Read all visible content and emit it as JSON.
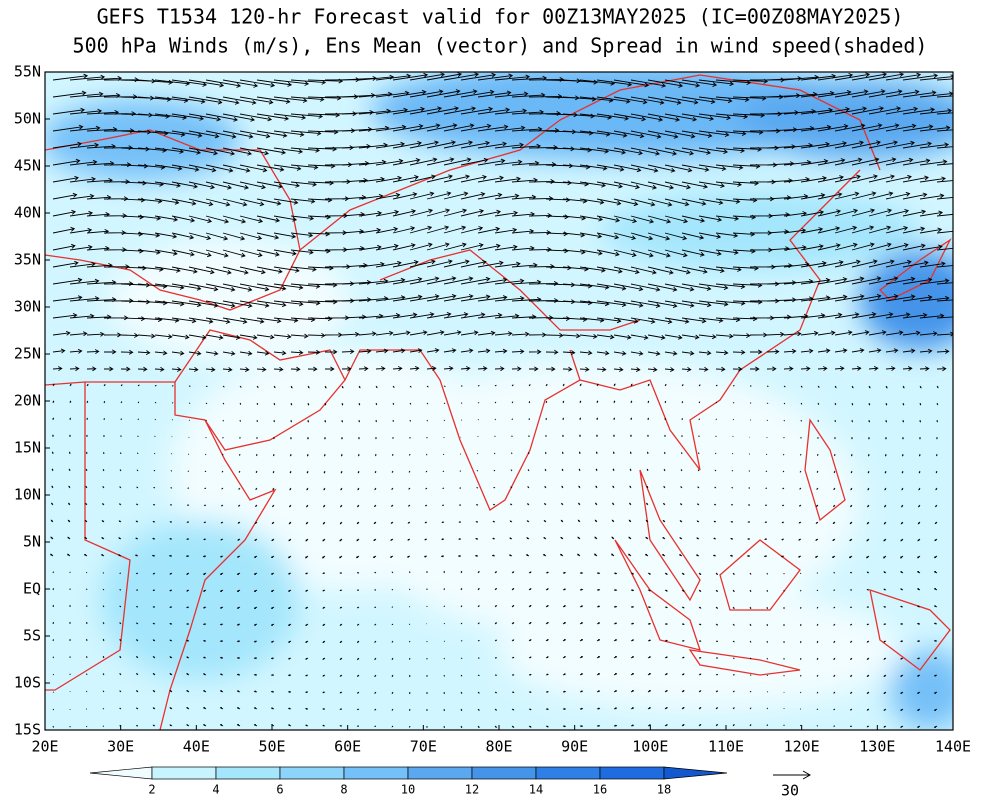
{
  "title": [
    "GEFS T1534 120-hr Forecast valid for 00Z13MAY2025 (IC=00Z08MAY2025)",
    "500 hPa Winds (m/s), Ens Mean (vector) and Spread in wind speed(shaded)"
  ],
  "map": {
    "lat_labels": [
      "55N",
      "50N",
      "45N",
      "40N",
      "35N",
      "30N",
      "25N",
      "20N",
      "15N",
      "10N",
      "5N",
      "EQ",
      "5S",
      "10S",
      "15S"
    ],
    "lon_labels": [
      "20E",
      "30E",
      "40E",
      "50E",
      "60E",
      "70E",
      "80E",
      "90E",
      "100E",
      "110E",
      "120E",
      "130E",
      "140E"
    ],
    "coastline_color": "#e8302c"
  },
  "colorbar": {
    "ticks": [
      2,
      4,
      6,
      8,
      10,
      12,
      14,
      16,
      18
    ],
    "colors": [
      "#f0fcff",
      "#c8f4ff",
      "#a4e6fc",
      "#8cd4fa",
      "#74c0f8",
      "#5aa8f0",
      "#4494ea",
      "#2e80e6",
      "#1e6ce0",
      "#1458d0"
    ]
  },
  "reference_vector": {
    "label": "30"
  }
}
